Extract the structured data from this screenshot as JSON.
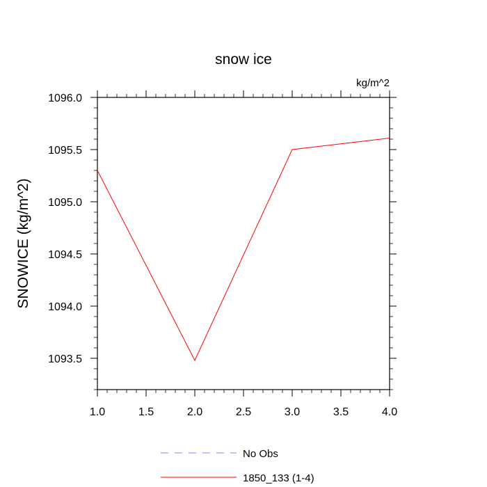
{
  "chart_data": {
    "type": "line",
    "title": "snow ice",
    "units_label": "kg/m^2",
    "ylabel": "SNOWICE  (kg/m^2)",
    "xlabel": "",
    "xlim": [
      1.0,
      4.0
    ],
    "ylim": [
      1093.2,
      1096.0
    ],
    "x_ticks": [
      "1.0",
      "1.5",
      "2.0",
      "2.5",
      "3.0",
      "3.5",
      "4.0"
    ],
    "y_ticks": [
      "1093.5",
      "1094.0",
      "1094.5",
      "1095.0",
      "1095.5",
      "1096.0"
    ],
    "x_tick_values": [
      1.0,
      1.5,
      2.0,
      2.5,
      3.0,
      3.5,
      4.0
    ],
    "y_tick_values": [
      1093.5,
      1094.0,
      1094.5,
      1095.0,
      1095.5,
      1096.0
    ],
    "grid": false,
    "legend_position": "bottom",
    "series": [
      {
        "name": "1850_133 (1-4)",
        "color": "#ff0000",
        "style": "solid",
        "x": [
          1.0,
          2.0,
          3.0,
          4.0
        ],
        "y": [
          1095.3,
          1093.48,
          1095.5,
          1095.61
        ]
      }
    ],
    "legend": [
      {
        "label": "No Obs",
        "color": "#8080ff",
        "style": "dashed"
      },
      {
        "label": "1850_133 (1-4)",
        "color": "#ff0000",
        "style": "solid"
      }
    ]
  }
}
